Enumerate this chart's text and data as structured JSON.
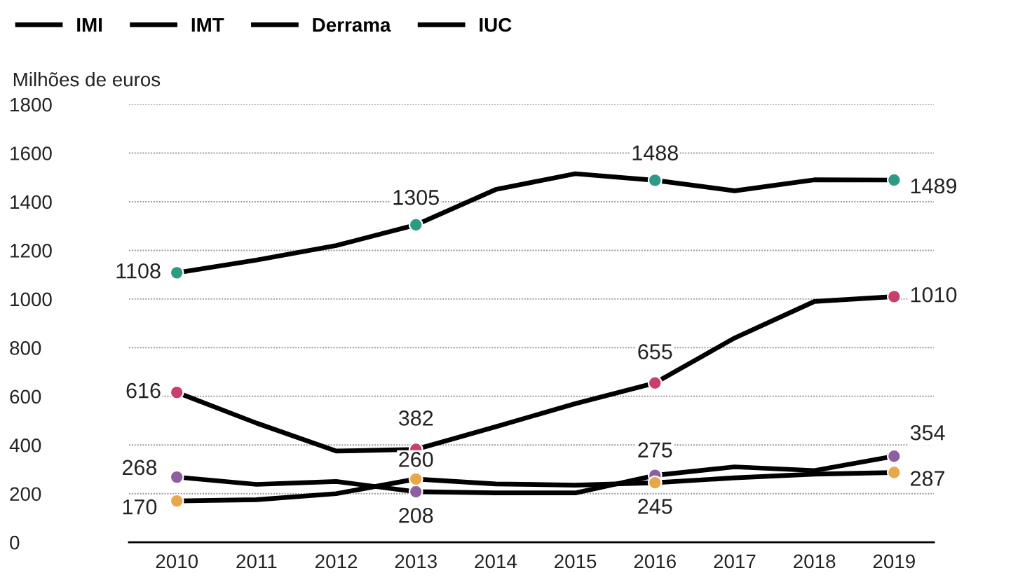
{
  "chart_data": {
    "type": "line",
    "ylabel": "Milhões de euros",
    "categories": [
      "2010",
      "2011",
      "2012",
      "2013",
      "2014",
      "2015",
      "2016",
      "2017",
      "2018",
      "2019"
    ],
    "series": [
      {
        "name": "IMI",
        "color": "#000000",
        "values": [
          1108,
          1160,
          1220,
          1305,
          1450,
          1515,
          1488,
          1445,
          1490,
          1489
        ],
        "colors": [
          "#2e9a85",
          null,
          null,
          "#2e9a85",
          null,
          null,
          "#2e9a85",
          null,
          null,
          "#2e9a85"
        ],
        "value_labels": [
          "1108",
          null,
          null,
          "1305",
          null,
          null,
          "1488",
          null,
          null,
          "1489"
        ]
      },
      {
        "name": "IMT",
        "color": "#000000",
        "values": [
          616,
          490,
          375,
          382,
          475,
          570,
          655,
          840,
          990,
          1010
        ],
        "colors": [
          "#c8406a",
          null,
          null,
          "#c8406a",
          null,
          null,
          "#c8406a",
          null,
          null,
          "#c8406a"
        ],
        "value_labels": [
          "616",
          null,
          null,
          "382",
          null,
          null,
          "655",
          null,
          null,
          "1010"
        ]
      },
      {
        "name": "Derrama",
        "color": "#000000",
        "values": [
          268,
          238,
          250,
          208,
          203,
          203,
          275,
          310,
          295,
          354
        ],
        "colors": [
          "#8e5fa0",
          null,
          null,
          "#8e5fa0",
          null,
          null,
          "#8e5fa0",
          null,
          null,
          "#8e5fa0"
        ],
        "value_labels": [
          "268",
          null,
          null,
          "208",
          null,
          null,
          "275",
          null,
          null,
          "354"
        ]
      },
      {
        "name": "IUC",
        "color": "#000000",
        "values": [
          170,
          175,
          200,
          260,
          240,
          235,
          245,
          265,
          280,
          287
        ],
        "colors": [
          "#e8a84a",
          null,
          null,
          "#e8a84a",
          null,
          null,
          "#e8a84a",
          null,
          null,
          "#e8a84a"
        ],
        "value_labels": [
          "170",
          null,
          null,
          "260",
          null,
          null,
          "245",
          null,
          null,
          "287"
        ]
      }
    ],
    "ylim": [
      0,
      1800
    ],
    "yticks": [
      0,
      200,
      400,
      600,
      800,
      1000,
      1200,
      1400,
      1600,
      1800
    ],
    "grid": "y",
    "legend": "top left",
    "line_style": "solid"
  }
}
